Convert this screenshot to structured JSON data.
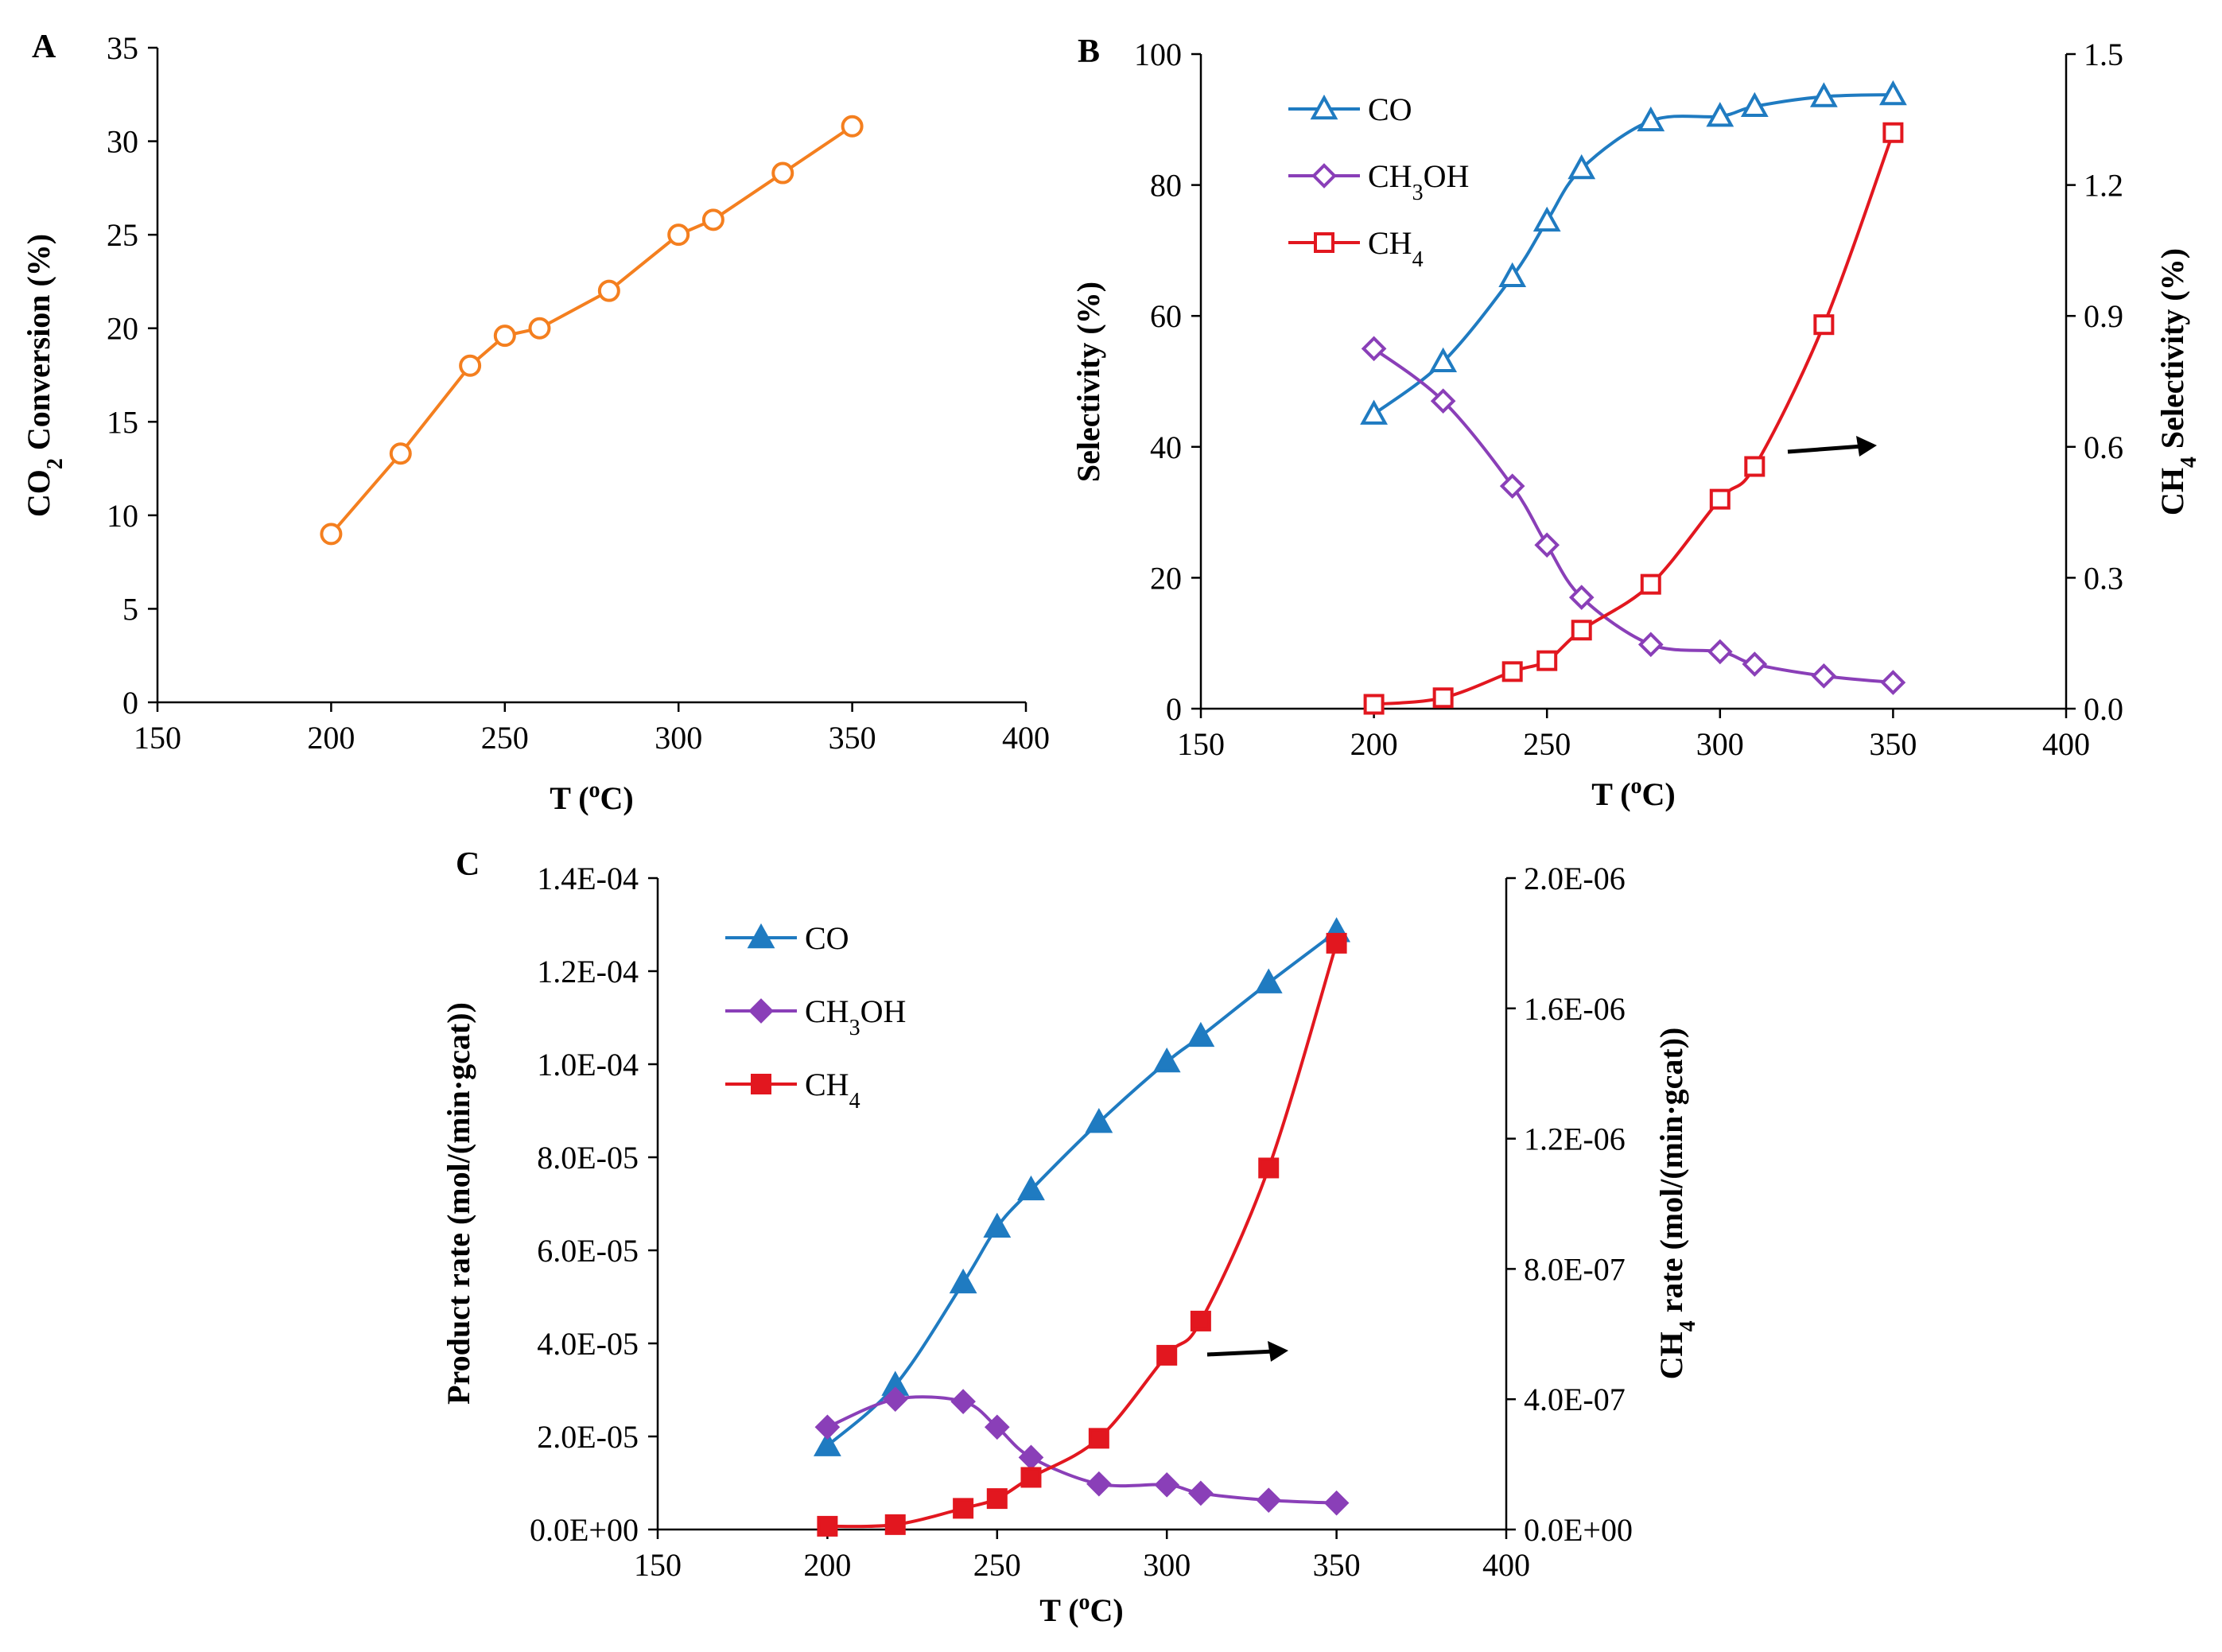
{
  "chart_data": [
    {
      "panel": "A",
      "type": "line",
      "xlabel": "T (°C)",
      "ylabel": "CO₂ Conversion (%)",
      "xlim": [
        150,
        400
      ],
      "ylim": [
        0,
        35
      ],
      "xticks": [
        "150",
        "200",
        "250",
        "300",
        "350",
        "400"
      ],
      "yticks": [
        "0",
        "5",
        "10",
        "15",
        "20",
        "25",
        "30",
        "35"
      ],
      "grid": false,
      "series": [
        {
          "name": "CO₂ Conversion",
          "color": "#F47F1F",
          "marker": "circle-open",
          "axis": "left",
          "x": [
            200,
            220,
            240,
            250,
            260,
            280,
            300,
            310,
            330,
            350
          ],
          "values": [
            9.0,
            13.3,
            18.0,
            19.6,
            20.0,
            22.0,
            25.0,
            25.8,
            28.3,
            30.8
          ]
        }
      ]
    },
    {
      "panel": "B",
      "type": "line",
      "xlabel": "T (°C)",
      "ylabel": "Selectivity (%)",
      "ylabel_right": "CH₄ Selectivity (%)",
      "xlim": [
        150,
        400
      ],
      "ylim": [
        0,
        100
      ],
      "ylim_right": [
        0,
        1.5
      ],
      "xticks": [
        "150",
        "200",
        "250",
        "300",
        "350",
        "400"
      ],
      "yticks": [
        "0",
        "20",
        "40",
        "60",
        "80",
        "100"
      ],
      "yticks_right": [
        "0.0",
        "0.3",
        "0.6",
        "0.9",
        "1.2",
        "1.5"
      ],
      "legend_position": "top-left",
      "annotation": "arrow pointing right (CH₄ on right axis)",
      "grid": false,
      "series": [
        {
          "name": "CO",
          "color": "#1F7BC1",
          "marker": "triangle-open",
          "axis": "left",
          "x": [
            200,
            220,
            240,
            250,
            260,
            280,
            300,
            310,
            330,
            350
          ],
          "values": [
            45.0,
            53.0,
            66.0,
            74.5,
            82.5,
            89.8,
            90.5,
            92.0,
            93.5,
            93.8
          ]
        },
        {
          "name": "CH₃OH",
          "color": "#8A3FB8",
          "marker": "diamond-open",
          "axis": "left",
          "x": [
            200,
            220,
            240,
            250,
            260,
            280,
            300,
            310,
            330,
            350
          ],
          "values": [
            55.0,
            47.0,
            34.0,
            25.0,
            17.0,
            9.8,
            8.7,
            6.8,
            5.0,
            4.0
          ]
        },
        {
          "name": "CH₄",
          "color": "#E2171F",
          "marker": "square-open",
          "axis": "right",
          "x": [
            200,
            220,
            240,
            250,
            260,
            280,
            300,
            310,
            330,
            350
          ],
          "values": [
            0.01,
            0.025,
            0.085,
            0.11,
            0.18,
            0.285,
            0.48,
            0.555,
            0.88,
            1.32
          ]
        }
      ]
    },
    {
      "panel": "C",
      "type": "line",
      "xlabel": "T (°C)",
      "ylabel": "Product rate (mol/(min·gcat))",
      "ylabel_right": "CH₄ rate (mol/(min·gcat))",
      "xlim": [
        150,
        400
      ],
      "ylim": [
        0,
        0.00014
      ],
      "ylim_right": [
        0,
        2e-06
      ],
      "xticks": [
        "150",
        "200",
        "250",
        "300",
        "350",
        "400"
      ],
      "yticks": [
        "0.0E+00",
        "2.0E-05",
        "4.0E-05",
        "6.0E-05",
        "8.0E-05",
        "1.0E-04",
        "1.2E-04",
        "1.4E-04"
      ],
      "yticks_right": [
        "0.0E+00",
        "4.0E-07",
        "8.0E-07",
        "1.2E-06",
        "1.6E-06",
        "2.0E-06"
      ],
      "legend_position": "top-left",
      "annotation": "arrow pointing right (CH₄ on right axis)",
      "grid": false,
      "series": [
        {
          "name": "CO",
          "color": "#1F7BC1",
          "marker": "triangle-filled",
          "axis": "left",
          "x": [
            200,
            220,
            240,
            250,
            260,
            280,
            300,
            310,
            330,
            350
          ],
          "values": [
            1.8e-05,
            3.1e-05,
            5.3e-05,
            6.5e-05,
            7.3e-05,
            8.75e-05,
            0.0001005,
            0.000106,
            0.0001175,
            0.0001285
          ]
        },
        {
          "name": "CH₃OH",
          "color": "#8A3FB8",
          "marker": "diamond-filled",
          "axis": "left",
          "x": [
            200,
            220,
            240,
            250,
            260,
            280,
            300,
            310,
            330,
            350
          ],
          "values": [
            2.2e-05,
            2.8e-05,
            2.75e-05,
            2.2e-05,
            1.55e-05,
            9.8e-06,
            9.6e-06,
            7.8e-06,
            6.3e-06,
            5.7e-06
          ]
        },
        {
          "name": "CH₄",
          "color": "#E2171F",
          "marker": "square-filled",
          "axis": "right",
          "x": [
            200,
            220,
            240,
            250,
            260,
            280,
            300,
            310,
            330,
            350
          ],
          "values": [
            1e-08,
            1.5e-08,
            6.5e-08,
            9.5e-08,
            1.6e-07,
            2.8e-07,
            5.35e-07,
            6.4e-07,
            1.11e-06,
            1.8e-06
          ]
        }
      ]
    }
  ]
}
